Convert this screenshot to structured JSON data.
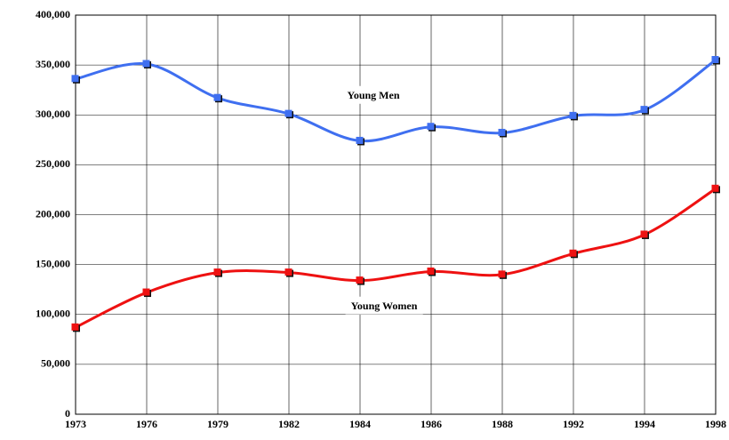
{
  "chart_data": {
    "type": "line",
    "categories": [
      "1973",
      "1976",
      "1979",
      "1982",
      "1984",
      "1986",
      "1988",
      "1992",
      "1994",
      "1998"
    ],
    "series": [
      {
        "name": "Young Men",
        "color": "#3f6ff0",
        "values": [
          336000,
          351000,
          317000,
          301000,
          274000,
          288000,
          282000,
          299000,
          305000,
          355000
        ]
      },
      {
        "name": "Young Women",
        "color": "#ee1111",
        "values": [
          87000,
          122000,
          142000,
          142000,
          134000,
          143000,
          140000,
          161000,
          180000,
          226000
        ]
      }
    ],
    "ylim": [
      0,
      400000
    ],
    "yticks": [
      0,
      {
        "value": 50000,
        "label": "50,000"
      },
      {
        "value": 100000,
        "label": "100,000"
      },
      {
        "value": 150000,
        "label": "150,000"
      },
      {
        "value": 200000,
        "label": "200,000"
      },
      {
        "value": 250000,
        "label": "250,000"
      },
      {
        "value": 300000,
        "label": "300,000"
      },
      {
        "value": 350000,
        "label": "350,000"
      },
      {
        "value": 400000,
        "label": "400,000"
      }
    ],
    "grid": true
  }
}
